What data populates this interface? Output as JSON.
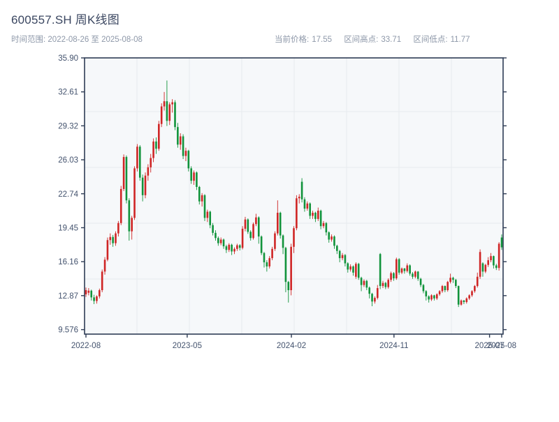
{
  "header": {
    "title": "600557.SH 周K线图",
    "range_label": "时间范围:",
    "range_value": "2022-08-26 至 2025-08-08",
    "stats": [
      {
        "label": "当前价格:",
        "value": "17.55"
      },
      {
        "label": "区间高点:",
        "value": "33.71"
      },
      {
        "label": "区间低点:",
        "value": "11.77"
      }
    ]
  },
  "colors": {
    "up": "#cf2525",
    "down": "#11933b",
    "axis": "#2e3c55",
    "plot_bg": "#f6f8fa",
    "grid": "#e7eaee",
    "tick_text": "#44536e",
    "title_text": "#3a4660",
    "subtitle_text": "#8e98a9",
    "page_bg": "#ffffff"
  },
  "chart_data": {
    "type": "candlestick",
    "title": "600557.SH 周K线图",
    "frequency": "weekly",
    "start_date": "2022-08-26",
    "end_date": "2025-08-08",
    "current_price": 17.55,
    "range_high": 33.71,
    "range_low": 11.77,
    "up_color_meaning": "red = close >= open (Chinese convention)",
    "down_color_meaning": "green = close < open",
    "ylim": [
      9.45,
      35.9
    ],
    "grid": "on",
    "y_ticks": [
      "35.90",
      "32.61",
      "29.32",
      "26.03",
      "22.74",
      "19.45",
      "16.16",
      "12.87",
      "9.576"
    ],
    "y_tick_values": [
      35.9,
      32.61,
      29.32,
      26.03,
      22.74,
      19.45,
      16.16,
      12.87,
      9.576
    ],
    "x_ticks": [
      {
        "label": "2022-08",
        "week": 0
      },
      {
        "label": "2023-05",
        "week": 37.5
      },
      {
        "label": "2024-02",
        "week": 76.1
      },
      {
        "label": "2024-11",
        "week": 114.1
      },
      {
        "label": "2025-07",
        "week": 149.5
      },
      {
        "label": "2025-08",
        "week": 154
      }
    ],
    "ohlc_format": [
      "open",
      "high",
      "low",
      "close"
    ],
    "ohlc": [
      [
        13.0,
        13.65,
        12.75,
        13.4
      ],
      [
        13.15,
        13.6,
        12.9,
        13.35
      ],
      [
        13.35,
        13.45,
        12.4,
        12.7
      ],
      [
        12.7,
        12.95,
        12.05,
        12.35
      ],
      [
        12.35,
        12.9,
        12.1,
        12.8
      ],
      [
        12.8,
        13.55,
        12.6,
        13.4
      ],
      [
        13.4,
        15.4,
        13.2,
        15.2
      ],
      [
        15.2,
        16.6,
        14.9,
        16.35
      ],
      [
        16.35,
        18.5,
        16.2,
        18.25
      ],
      [
        18.25,
        18.9,
        17.8,
        18.55
      ],
      [
        18.55,
        18.75,
        17.6,
        17.95
      ],
      [
        17.95,
        19.1,
        17.7,
        18.9
      ],
      [
        18.9,
        20.1,
        18.6,
        19.9
      ],
      [
        19.9,
        23.5,
        19.7,
        23.2
      ],
      [
        23.2,
        26.55,
        23.0,
        26.3
      ],
      [
        26.3,
        26.45,
        21.8,
        22.1
      ],
      [
        22.1,
        22.3,
        18.2,
        19.1
      ],
      [
        19.1,
        20.6,
        18.3,
        20.4
      ],
      [
        20.4,
        25.4,
        20.2,
        25.2
      ],
      [
        25.2,
        27.55,
        24.9,
        27.3
      ],
      [
        27.3,
        27.45,
        24.0,
        24.3
      ],
      [
        24.3,
        24.6,
        22.0,
        22.6
      ],
      [
        22.6,
        24.8,
        22.3,
        24.5
      ],
      [
        24.5,
        25.6,
        24.0,
        25.3
      ],
      [
        25.3,
        26.6,
        24.8,
        26.2
      ],
      [
        26.2,
        28.1,
        25.8,
        27.8
      ],
      [
        27.8,
        28.2,
        26.6,
        27.1
      ],
      [
        27.1,
        29.8,
        26.9,
        29.5
      ],
      [
        29.5,
        31.5,
        29.2,
        31.2
      ],
      [
        31.2,
        32.6,
        30.8,
        31.7
      ],
      [
        31.7,
        33.71,
        29.3,
        29.8
      ],
      [
        29.8,
        31.6,
        29.4,
        31.4
      ],
      [
        31.4,
        31.9,
        30.6,
        31.6
      ],
      [
        31.6,
        31.8,
        28.9,
        29.2
      ],
      [
        29.2,
        29.6,
        27.2,
        27.5
      ],
      [
        27.5,
        28.6,
        27.0,
        28.3
      ],
      [
        28.3,
        28.5,
        26.1,
        26.4
      ],
      [
        26.4,
        27.2,
        25.9,
        26.9
      ],
      [
        26.9,
        27.0,
        24.9,
        25.2
      ],
      [
        25.2,
        25.4,
        23.7,
        24.0
      ],
      [
        24.0,
        25.0,
        23.6,
        24.8
      ],
      [
        24.8,
        24.9,
        23.1,
        23.4
      ],
      [
        23.4,
        23.5,
        21.7,
        22.0
      ],
      [
        22.0,
        22.8,
        21.5,
        22.6
      ],
      [
        22.6,
        22.7,
        20.1,
        20.4
      ],
      [
        20.4,
        21.2,
        20.0,
        21.0
      ],
      [
        21.0,
        21.1,
        19.4,
        19.7
      ],
      [
        19.7,
        19.9,
        18.7,
        18.95
      ],
      [
        18.95,
        19.2,
        18.2,
        18.45
      ],
      [
        18.45,
        18.6,
        17.7,
        17.95
      ],
      [
        17.95,
        18.5,
        17.75,
        18.3
      ],
      [
        18.3,
        18.4,
        17.4,
        17.65
      ],
      [
        17.65,
        17.8,
        17.0,
        17.3
      ],
      [
        17.3,
        17.95,
        17.1,
        17.8
      ],
      [
        17.8,
        17.9,
        16.8,
        17.15
      ],
      [
        17.15,
        17.55,
        16.9,
        17.4
      ],
      [
        17.4,
        17.9,
        17.2,
        17.75
      ],
      [
        17.75,
        17.85,
        17.25,
        17.5
      ],
      [
        17.5,
        19.6,
        17.35,
        19.35
      ],
      [
        19.35,
        20.5,
        19.1,
        20.25
      ],
      [
        20.25,
        20.35,
        18.85,
        19.05
      ],
      [
        19.05,
        19.2,
        18.2,
        18.45
      ],
      [
        18.45,
        19.95,
        18.3,
        19.8
      ],
      [
        19.8,
        20.8,
        19.6,
        20.45
      ],
      [
        20.45,
        20.55,
        17.9,
        18.6
      ],
      [
        18.6,
        18.7,
        16.8,
        17.0
      ],
      [
        17.0,
        17.1,
        15.6,
        16.1
      ],
      [
        16.1,
        16.3,
        15.2,
        15.7
      ],
      [
        15.7,
        16.7,
        15.5,
        16.5
      ],
      [
        16.5,
        17.6,
        16.3,
        17.4
      ],
      [
        17.4,
        19.1,
        17.2,
        18.9
      ],
      [
        18.9,
        22.1,
        18.7,
        20.9
      ],
      [
        20.9,
        21.0,
        18.4,
        18.7
      ],
      [
        18.7,
        18.8,
        16.9,
        17.5
      ],
      [
        17.5,
        17.6,
        13.2,
        14.2
      ],
      [
        14.2,
        14.3,
        12.2,
        13.4
      ],
      [
        13.4,
        17.9,
        12.9,
        17.6
      ],
      [
        17.6,
        19.6,
        17.0,
        19.4
      ],
      [
        19.4,
        22.6,
        19.2,
        22.3
      ],
      [
        22.3,
        22.7,
        21.8,
        22.45
      ],
      [
        23.9,
        24.25,
        21.9,
        22.2
      ],
      [
        22.2,
        22.4,
        21.0,
        21.3
      ],
      [
        21.3,
        22.0,
        21.1,
        21.8
      ],
      [
        21.8,
        21.9,
        20.3,
        20.6
      ],
      [
        20.6,
        21.1,
        20.3,
        20.9
      ],
      [
        20.9,
        21.0,
        20.0,
        20.3
      ],
      [
        20.3,
        21.4,
        20.1,
        21.1
      ],
      [
        21.1,
        21.2,
        19.3,
        19.6
      ],
      [
        19.6,
        20.1,
        19.4,
        19.9
      ],
      [
        19.9,
        20.0,
        18.7,
        19.0
      ],
      [
        19.0,
        19.1,
        18.0,
        18.3
      ],
      [
        18.3,
        18.8,
        18.1,
        18.6
      ],
      [
        18.6,
        18.7,
        17.4,
        17.7
      ],
      [
        17.7,
        17.8,
        16.9,
        17.2
      ],
      [
        17.2,
        17.3,
        16.1,
        16.5
      ],
      [
        16.5,
        17.0,
        16.3,
        16.8
      ],
      [
        16.8,
        16.9,
        15.7,
        16.0
      ],
      [
        16.0,
        16.1,
        15.1,
        15.4
      ],
      [
        15.4,
        15.9,
        15.2,
        15.7
      ],
      [
        15.7,
        15.8,
        14.8,
        15.1
      ],
      [
        14.7,
        16.1,
        14.5,
        15.95
      ],
      [
        15.95,
        16.05,
        14.4,
        14.6
      ],
      [
        14.6,
        14.7,
        13.3,
        13.9
      ],
      [
        13.9,
        14.45,
        13.7,
        14.3
      ],
      [
        14.3,
        14.4,
        13.4,
        13.65
      ],
      [
        13.65,
        13.75,
        12.6,
        13.05
      ],
      [
        13.05,
        13.15,
        11.85,
        12.3
      ],
      [
        12.3,
        12.8,
        12.1,
        12.65
      ],
      [
        12.65,
        13.9,
        12.5,
        13.6
      ],
      [
        16.9,
        17.0,
        13.5,
        13.8
      ],
      [
        13.8,
        14.3,
        13.6,
        14.1
      ],
      [
        14.1,
        14.2,
        13.5,
        13.7
      ],
      [
        13.7,
        14.55,
        13.55,
        14.4
      ],
      [
        14.4,
        15.2,
        14.2,
        15.05
      ],
      [
        15.05,
        15.15,
        14.3,
        14.55
      ],
      [
        14.55,
        16.55,
        14.4,
        16.4
      ],
      [
        16.4,
        16.5,
        14.9,
        15.1
      ],
      [
        15.1,
        15.6,
        14.95,
        15.5
      ],
      [
        15.5,
        15.55,
        15.0,
        15.25
      ],
      [
        15.25,
        16.0,
        15.1,
        15.8
      ],
      [
        15.8,
        15.9,
        14.8,
        15.0
      ],
      [
        15.0,
        15.15,
        14.5,
        14.7
      ],
      [
        14.7,
        15.3,
        14.55,
        15.2
      ],
      [
        15.2,
        15.25,
        14.3,
        14.5
      ],
      [
        14.5,
        14.6,
        13.7,
        13.9
      ],
      [
        13.9,
        14.0,
        13.1,
        13.3
      ],
      [
        13.3,
        13.4,
        12.4,
        12.8
      ],
      [
        12.8,
        12.9,
        12.2,
        12.5
      ],
      [
        12.5,
        13.0,
        12.35,
        12.9
      ],
      [
        12.9,
        12.95,
        12.4,
        12.6
      ],
      [
        12.6,
        13.1,
        12.45,
        13.0
      ],
      [
        13.0,
        13.4,
        12.85,
        13.3
      ],
      [
        13.3,
        13.9,
        13.15,
        13.8
      ],
      [
        13.8,
        13.85,
        13.2,
        13.4
      ],
      [
        13.4,
        14.3,
        13.25,
        14.2
      ],
      [
        14.2,
        15.0,
        14.05,
        14.6
      ],
      [
        14.6,
        14.7,
        14.1,
        14.4
      ],
      [
        14.4,
        14.5,
        13.6,
        13.8
      ],
      [
        13.8,
        13.85,
        11.77,
        12.0
      ],
      [
        12.0,
        12.5,
        11.9,
        12.4
      ],
      [
        12.4,
        12.45,
        12.05,
        12.25
      ],
      [
        12.25,
        12.7,
        12.1,
        12.6
      ],
      [
        12.6,
        13.0,
        12.45,
        12.9
      ],
      [
        12.9,
        13.4,
        12.75,
        13.3
      ],
      [
        13.3,
        13.9,
        13.15,
        13.8
      ],
      [
        13.8,
        15.1,
        13.65,
        14.7
      ],
      [
        14.7,
        17.35,
        14.5,
        17.1
      ],
      [
        16.0,
        16.1,
        14.7,
        15.2
      ],
      [
        15.2,
        15.95,
        15.05,
        15.85
      ],
      [
        15.85,
        16.6,
        15.65,
        16.3
      ],
      [
        16.3,
        17.0,
        16.1,
        16.7
      ],
      [
        16.7,
        16.75,
        15.5,
        15.8
      ],
      [
        15.8,
        15.95,
        15.35,
        15.55
      ],
      [
        15.55,
        18.05,
        15.3,
        17.9
      ],
      [
        18.5,
        18.8,
        17.3,
        17.55
      ]
    ]
  }
}
